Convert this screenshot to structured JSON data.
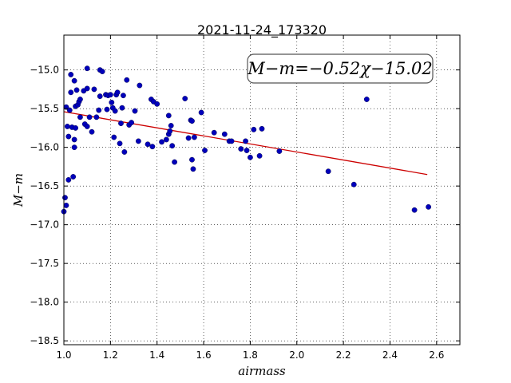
{
  "chart_data": {
    "type": "scatter",
    "title": "2021-11-24_173320",
    "xlabel": "airmass",
    "ylabel": "M−m",
    "xlim": [
      1.0,
      2.7
    ],
    "ylim": [
      -18.55,
      -14.55
    ],
    "y_inverted": true,
    "grid": true,
    "x_ticks": [
      "1.0",
      "1.2",
      "1.4",
      "1.6",
      "1.8",
      "2.0",
      "2.2",
      "2.4",
      "2.6"
    ],
    "y_ticks": [
      "−15.0",
      "−15.5",
      "−16.0",
      "−16.5",
      "−17.0",
      "−17.5",
      "−18.0",
      "−18.5"
    ],
    "x_tick_values": [
      1.0,
      1.2,
      1.4,
      1.6,
      1.8,
      2.0,
      2.2,
      2.4,
      2.6
    ],
    "y_tick_values": [
      -15.0,
      -15.5,
      -16.0,
      -16.5,
      -17.0,
      -17.5,
      -18.0,
      -18.5
    ],
    "annotation": "M−m=−0.52χ−15.02",
    "fit": {
      "slope": -0.52,
      "intercept": -15.02,
      "x_range": [
        1.0,
        2.56
      ],
      "color": "#cc0000"
    },
    "point_color": "#0000bb",
    "points": [
      [
        1.0,
        -16.83
      ],
      [
        1.005,
        -16.65
      ],
      [
        1.01,
        -16.75
      ],
      [
        1.01,
        -15.48
      ],
      [
        1.015,
        -15.73
      ],
      [
        1.02,
        -15.86
      ],
      [
        1.02,
        -16.42
      ],
      [
        1.025,
        -15.52
      ],
      [
        1.03,
        -15.06
      ],
      [
        1.03,
        -15.29
      ],
      [
        1.035,
        -15.74
      ],
      [
        1.04,
        -16.38
      ],
      [
        1.045,
        -15.14
      ],
      [
        1.045,
        -15.9
      ],
      [
        1.045,
        -16.0
      ],
      [
        1.05,
        -15.47
      ],
      [
        1.05,
        -15.75
      ],
      [
        1.055,
        -15.26
      ],
      [
        1.06,
        -15.45
      ],
      [
        1.065,
        -15.41
      ],
      [
        1.07,
        -15.38
      ],
      [
        1.07,
        -15.61
      ],
      [
        1.085,
        -15.27
      ],
      [
        1.09,
        -15.7
      ],
      [
        1.1,
        -15.24
      ],
      [
        1.1,
        -14.98
      ],
      [
        1.1,
        -15.73
      ],
      [
        1.11,
        -15.61
      ],
      [
        1.12,
        -15.8
      ],
      [
        1.13,
        -15.25
      ],
      [
        1.14,
        -15.61
      ],
      [
        1.15,
        -15.52
      ],
      [
        1.155,
        -15.34
      ],
      [
        1.155,
        -15.0
      ],
      [
        1.165,
        -15.02
      ],
      [
        1.18,
        -15.32
      ],
      [
        1.185,
        -15.51
      ],
      [
        1.19,
        -15.33
      ],
      [
        1.2,
        -15.32
      ],
      [
        1.205,
        -15.42
      ],
      [
        1.21,
        -15.49
      ],
      [
        1.215,
        -15.87
      ],
      [
        1.22,
        -15.53
      ],
      [
        1.225,
        -15.32
      ],
      [
        1.23,
        -15.29
      ],
      [
        1.24,
        -15.95
      ],
      [
        1.245,
        -15.69
      ],
      [
        1.25,
        -15.49
      ],
      [
        1.255,
        -15.33
      ],
      [
        1.26,
        -16.06
      ],
      [
        1.27,
        -15.13
      ],
      [
        1.28,
        -15.71
      ],
      [
        1.29,
        -15.68
      ],
      [
        1.305,
        -15.53
      ],
      [
        1.32,
        -15.92
      ],
      [
        1.325,
        -15.2
      ],
      [
        1.36,
        -15.96
      ],
      [
        1.375,
        -15.38
      ],
      [
        1.38,
        -15.99
      ],
      [
        1.385,
        -15.41
      ],
      [
        1.4,
        -15.44
      ],
      [
        1.42,
        -15.93
      ],
      [
        1.44,
        -15.9
      ],
      [
        1.45,
        -15.83
      ],
      [
        1.45,
        -15.59
      ],
      [
        1.455,
        -15.79
      ],
      [
        1.46,
        -15.72
      ],
      [
        1.465,
        -15.98
      ],
      [
        1.475,
        -16.19
      ],
      [
        1.52,
        -15.37
      ],
      [
        1.535,
        -15.88
      ],
      [
        1.545,
        -15.65
      ],
      [
        1.55,
        -15.66
      ],
      [
        1.55,
        -16.16
      ],
      [
        1.555,
        -16.28
      ],
      [
        1.56,
        -15.87
      ],
      [
        1.59,
        -15.55
      ],
      [
        1.605,
        -16.04
      ],
      [
        1.645,
        -15.81
      ],
      [
        1.69,
        -15.83
      ],
      [
        1.71,
        -15.92
      ],
      [
        1.72,
        -15.92
      ],
      [
        1.76,
        -16.02
      ],
      [
        1.78,
        -15.92
      ],
      [
        1.785,
        -16.04
      ],
      [
        1.8,
        -16.13
      ],
      [
        1.815,
        -15.77
      ],
      [
        1.84,
        -16.11
      ],
      [
        1.85,
        -15.76
      ],
      [
        1.925,
        -16.05
      ],
      [
        2.135,
        -16.31
      ],
      [
        2.245,
        -16.48
      ],
      [
        2.3,
        -15.38
      ],
      [
        2.505,
        -16.81
      ],
      [
        2.565,
        -16.77
      ]
    ]
  }
}
